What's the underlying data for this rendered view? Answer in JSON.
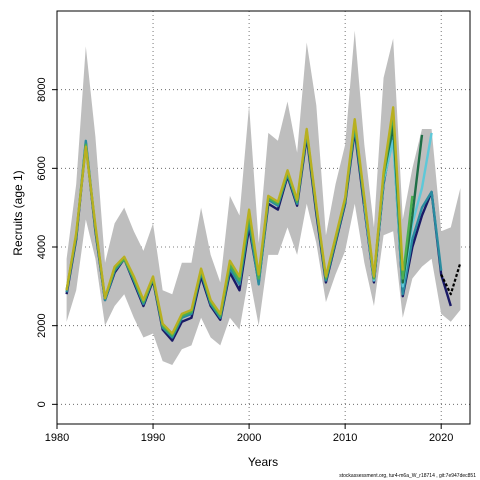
{
  "chart_data": {
    "type": "line",
    "xlabel": "Years",
    "ylabel": "Recruits (age 1)",
    "xlim": [
      1980,
      2023
    ],
    "ylim": [
      -500,
      10000
    ],
    "x_ticks": [
      1980,
      1990,
      2000,
      2010,
      2020
    ],
    "y_ticks": [
      0,
      2000,
      4000,
      6000,
      8000
    ],
    "grid": true,
    "legend": "none",
    "footer": "stockassessment.org, tur4-m6a_W_r18714 , git:7e947dec851",
    "confidence_band": {
      "color": "#bebebe",
      "x": [
        1981,
        1982,
        1983,
        1984,
        1985,
        1986,
        1987,
        1988,
        1989,
        1990,
        1991,
        1992,
        1993,
        1994,
        1995,
        1996,
        1997,
        1998,
        1999,
        2000,
        2001,
        2002,
        2003,
        2004,
        2005,
        2006,
        2007,
        2008,
        2009,
        2010,
        2011,
        2012,
        2013,
        2014,
        2015,
        2016,
        2017,
        2018,
        2019,
        2020,
        2021,
        2022
      ],
      "upper": [
        3700,
        5600,
        9100,
        6800,
        3600,
        4600,
        5000,
        4400,
        3900,
        4600,
        2900,
        2800,
        3600,
        3600,
        5000,
        3800,
        3100,
        5300,
        4800,
        7600,
        4100,
        6900,
        6700,
        7700,
        6400,
        9200,
        7600,
        4300,
        5600,
        6600,
        9500,
        6600,
        4500,
        8300,
        9300,
        4700,
        6000,
        7000,
        7000,
        4400,
        4500,
        5500
      ],
      "lower": [
        2100,
        2900,
        4700,
        3700,
        2000,
        2500,
        2800,
        2200,
        1700,
        1800,
        1100,
        1000,
        1400,
        1500,
        2200,
        1700,
        1500,
        2200,
        1900,
        3300,
        2000,
        3800,
        3800,
        4500,
        3800,
        5100,
        4100,
        2600,
        3300,
        3900,
        5100,
        3600,
        2500,
        4300,
        4400,
        2200,
        3200,
        3500,
        3700,
        2300,
        2100,
        2400
      ]
    },
    "series": [
      {
        "color": "#1a1a66",
        "x": [
          1981,
          1982,
          1983,
          1984,
          1985,
          1986,
          1987,
          1988,
          1989,
          1990,
          1991,
          1992,
          1993,
          1994,
          1995,
          1996,
          1997,
          1998,
          1999,
          2000,
          2001,
          2002,
          2003,
          2004,
          2005,
          2006,
          2007,
          2008,
          2009,
          2010,
          2011,
          2012,
          2013,
          2014,
          2015,
          2016,
          2017,
          2018,
          2019,
          2020,
          2021
        ],
        "values": [
          2800,
          4200,
          6650,
          4400,
          2650,
          3350,
          3700,
          3100,
          2500,
          3150,
          1900,
          1620,
          2100,
          2200,
          3250,
          2500,
          2150,
          3350,
          2900,
          4500,
          3100,
          5100,
          4950,
          5800,
          5050,
          6800,
          4850,
          3100,
          4100,
          5100,
          6950,
          5000,
          3100,
          5600,
          7000,
          2750,
          4000,
          4800,
          5400,
          3300,
          2500
        ]
      },
      {
        "color": "#2a8ca0",
        "x": [
          1981,
          1982,
          1983,
          1984,
          1985,
          1986,
          1987,
          1988,
          1989,
          1990,
          1991,
          1992,
          1993,
          1994,
          1995,
          1996,
          1997,
          1998,
          1999,
          2000,
          2001,
          2002,
          2003,
          2004,
          2005,
          2006,
          2007,
          2008,
          2009,
          2010,
          2011,
          2012,
          2013,
          2014,
          2015,
          2016,
          2017,
          2018,
          2019,
          2020
        ],
        "values": [
          2850,
          4250,
          6700,
          4450,
          2650,
          3400,
          3700,
          3150,
          2550,
          3200,
          1950,
          1700,
          2200,
          2300,
          3350,
          2550,
          2200,
          3450,
          3050,
          4650,
          3050,
          5200,
          5050,
          5850,
          5100,
          6900,
          4950,
          3150,
          4150,
          5150,
          7050,
          5100,
          3150,
          5650,
          6800,
          2800,
          4200,
          5000,
          5400,
          3400
        ]
      },
      {
        "color": "#5ec8d8",
        "x": [
          2012,
          2013,
          2014,
          2015,
          2016,
          2017,
          2018,
          2019
        ],
        "values": [
          5100,
          3150,
          5700,
          6700,
          3000,
          4600,
          5500,
          6900
        ]
      },
      {
        "color": "#1e6e46",
        "x": [
          2013,
          2014,
          2015,
          2016,
          2017,
          2018
        ],
        "values": [
          3200,
          5800,
          7100,
          3100,
          4800,
          6850
        ]
      },
      {
        "color": "#4caf50",
        "x": [
          1981,
          1982,
          1983,
          1984,
          1985,
          1986,
          1987,
          1988,
          1989,
          1990,
          1991,
          1992,
          1993,
          1994,
          1995,
          1996,
          1997,
          1998,
          1999,
          2000,
          2001,
          2002,
          2003,
          2004,
          2005,
          2006,
          2007,
          2008,
          2009,
          2010,
          2011,
          2012,
          2013,
          2014,
          2015,
          2016,
          2017
        ],
        "values": [
          2900,
          4300,
          6600,
          4500,
          2700,
          3450,
          3700,
          3200,
          2600,
          3200,
          2000,
          1750,
          2250,
          2350,
          3400,
          2600,
          2250,
          3550,
          3150,
          4800,
          3200,
          5250,
          5100,
          5900,
          5150,
          6950,
          5000,
          3200,
          4200,
          5200,
          7150,
          5200,
          3200,
          5800,
          7400,
          3200,
          5300
        ]
      },
      {
        "color": "#b8b020",
        "x": [
          1981,
          1982,
          1983,
          1984,
          1985,
          1986,
          1987,
          1988,
          1989,
          1990,
          1991,
          1992,
          1993,
          1994,
          1995,
          1996,
          1997,
          1998,
          1999,
          2000,
          2001,
          2002,
          2003,
          2004,
          2005,
          2006,
          2007,
          2008,
          2009,
          2010,
          2011,
          2012,
          2013,
          2014,
          2015,
          2016
        ],
        "values": [
          2900,
          4350,
          6550,
          4550,
          2700,
          3500,
          3750,
          3250,
          2650,
          3250,
          2050,
          1800,
          2300,
          2400,
          3450,
          2650,
          2300,
          3650,
          3250,
          4950,
          3300,
          5300,
          5150,
          5950,
          5200,
          7000,
          5050,
          3250,
          4250,
          5250,
          7250,
          5250,
          3250,
          5900,
          7550,
          3400
        ]
      },
      {
        "color": "#000000",
        "dashed": true,
        "x": [
          2020,
          2021,
          2022
        ],
        "values": [
          3300,
          2800,
          3600
        ]
      }
    ]
  }
}
